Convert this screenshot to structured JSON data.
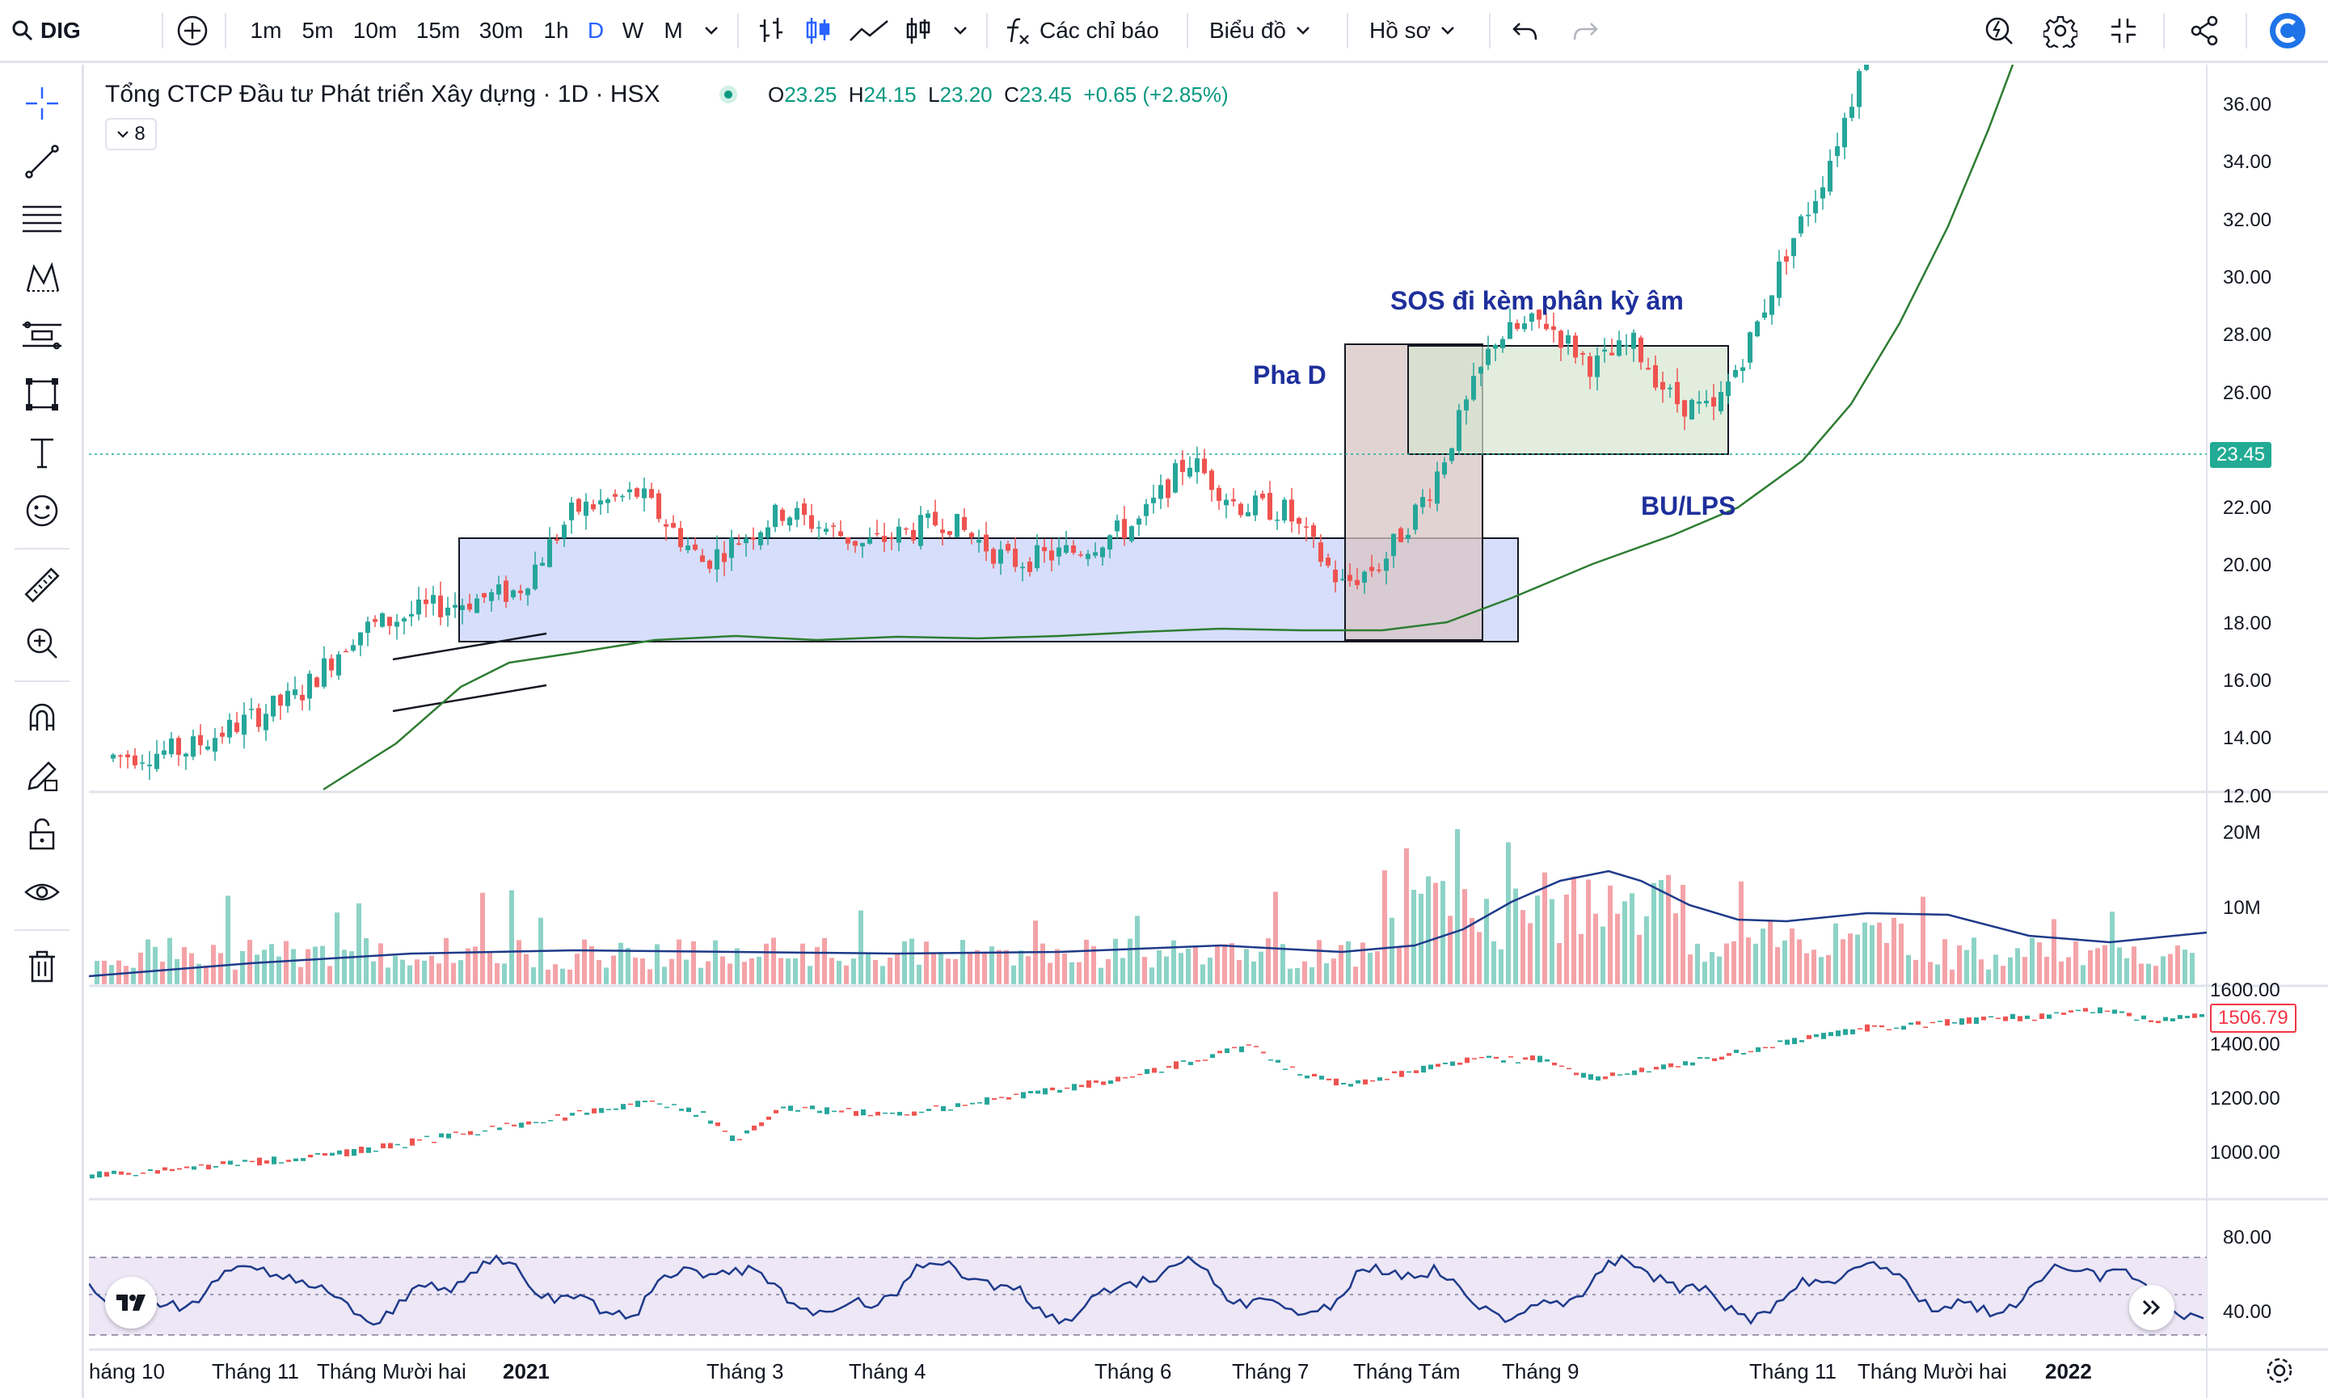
{
  "toolbar": {
    "symbol": "DIG",
    "intervals": [
      "1m",
      "5m",
      "10m",
      "15m",
      "30m",
      "1h",
      "D",
      "W",
      "M"
    ],
    "active_interval": "D",
    "indicators_label": "Các chỉ báo",
    "chart_label": "Biểu đồ",
    "profile_label": "Hồ sơ"
  },
  "legend": {
    "title": "Tổng CTCP Đầu tư Phát triển Xây dựng · 1D · HSX",
    "open_key": "O",
    "open": "23.25",
    "high_key": "H",
    "high": "24.15",
    "low_key": "L",
    "low": "23.20",
    "close_key": "C",
    "close": "23.45",
    "change": "+0.65 (+2.85%)",
    "collapsed_count": "8"
  },
  "annotations": {
    "phase_d": "Pha D",
    "sos": "SOS đi kèm phân kỳ âm",
    "bu_lps": "BU/LPS"
  },
  "price_axis": [
    "36.00",
    "34.00",
    "32.00",
    "30.00",
    "28.00",
    "26.00",
    "24.00",
    "22.00",
    "20.00",
    "18.00",
    "16.00",
    "14.00",
    "12.00"
  ],
  "current_price": "23.45",
  "volume_axis": [
    "20M",
    "10M"
  ],
  "index_axis": [
    "1600.00",
    "1400.00",
    "1200.00",
    "1000.00"
  ],
  "index_current": "1506.79",
  "rsi_axis": [
    "80.00",
    "40.00"
  ],
  "time_axis": [
    {
      "label": "háng 10",
      "bold": false
    },
    {
      "label": "Tháng 11",
      "bold": false
    },
    {
      "label": "Tháng Mười hai",
      "bold": false
    },
    {
      "label": "2021",
      "bold": true
    },
    {
      "label": "Tháng 3",
      "bold": false
    },
    {
      "label": "Tháng 4",
      "bold": false
    },
    {
      "label": "Tháng 6",
      "bold": false
    },
    {
      "label": "Tháng 7",
      "bold": false
    },
    {
      "label": "Tháng Tám",
      "bold": false
    },
    {
      "label": "Tháng 9",
      "bold": false
    },
    {
      "label": "Tháng 11",
      "bold": false
    },
    {
      "label": "Tháng Mười hai",
      "bold": false
    },
    {
      "label": "2022",
      "bold": true
    }
  ],
  "colors": {
    "up": "#26a69a",
    "down": "#ef5350",
    "ma": "#2e7d32",
    "volume_ma": "#1e3a8a",
    "rsi": "#1e3a8a",
    "range_box": "#c5d0fa",
    "phase_box": "#d8c4c4",
    "sos_box": "#d5e6d0",
    "accent": "#2962ff"
  }
}
